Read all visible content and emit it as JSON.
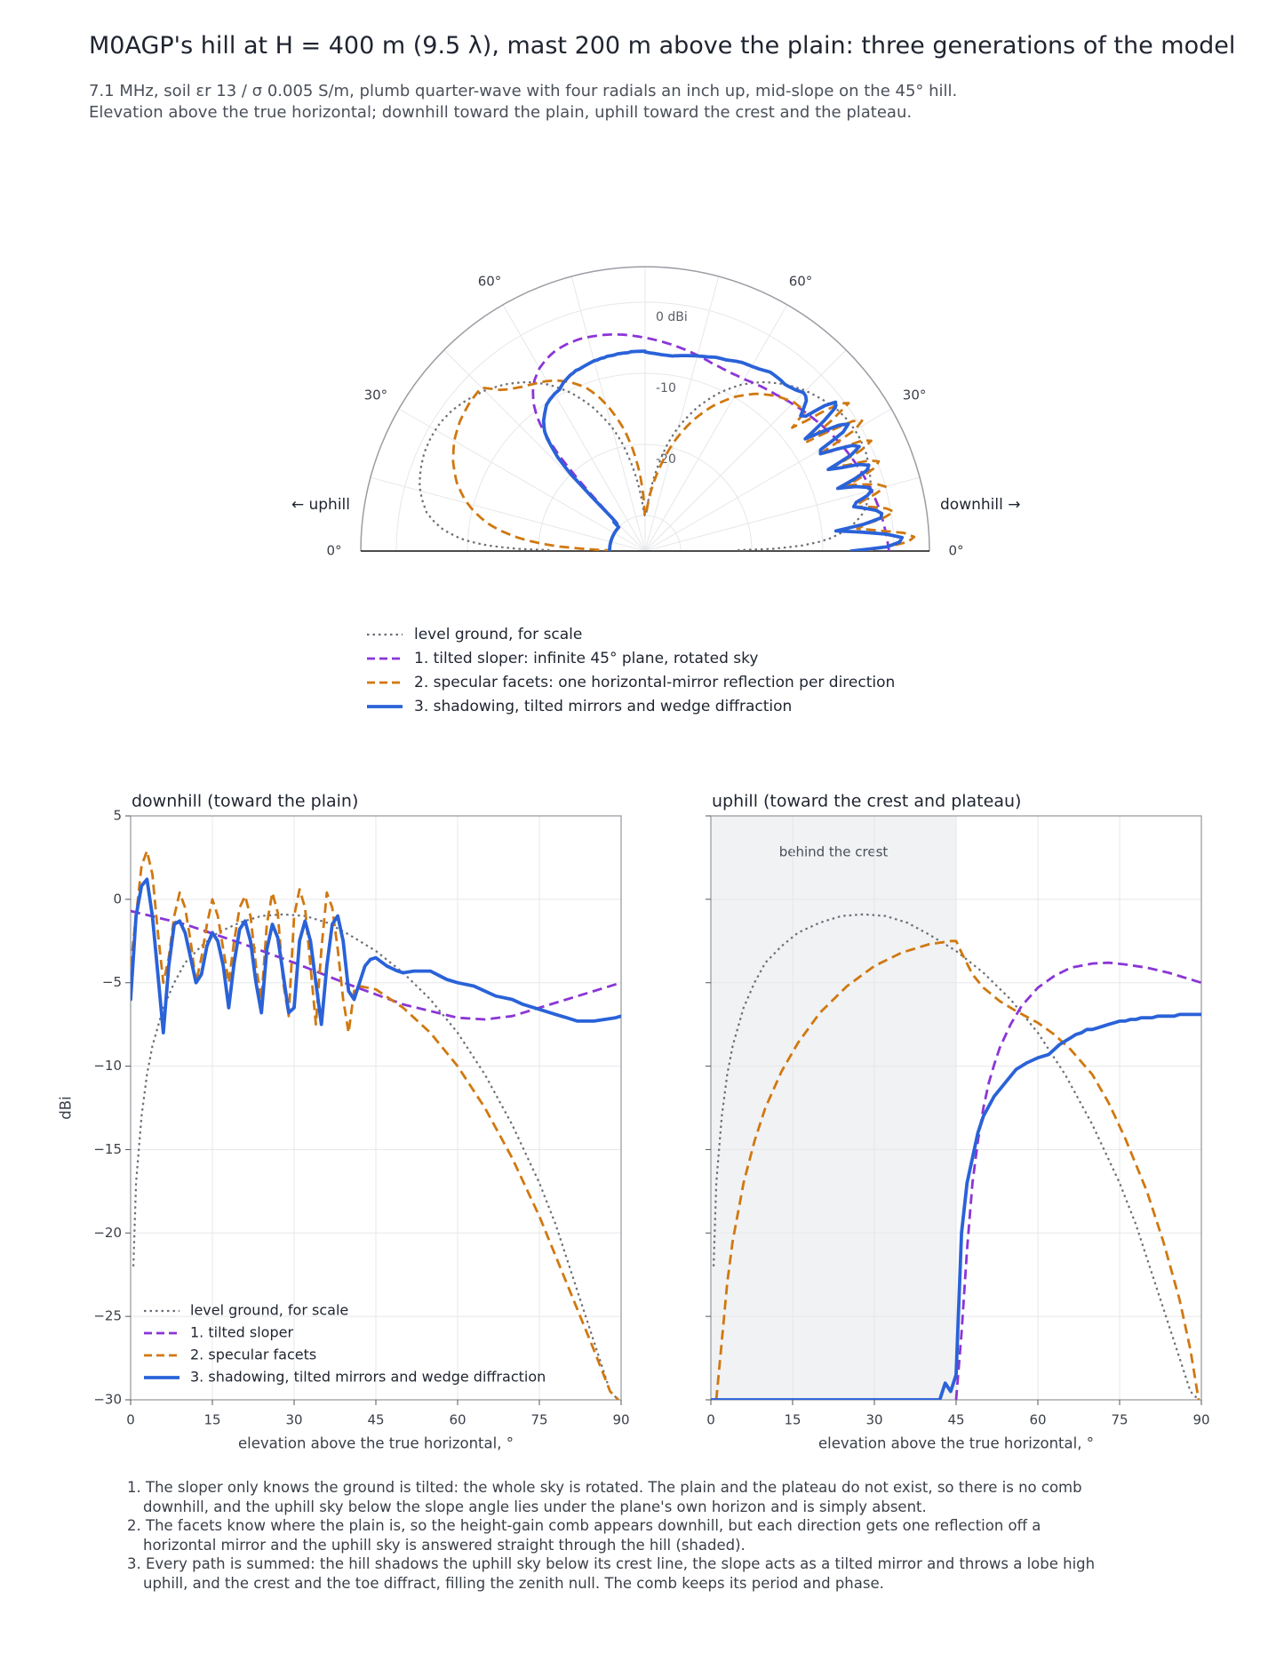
{
  "title": "M0AGP's hill at H = 400 m (9.5 λ), mast 200 m above the plain: three generations of the model",
  "subtitle": [
    "7.1 MHz, soil εr 13 / σ 0.005 S/m, plumb quarter-wave with four radials an inch up, mid-slope on the 45° hill.",
    "Elevation above the true horizontal; downhill toward the plain, uphill toward the crest and the plateau."
  ],
  "colors": {
    "level": "#6b6e75",
    "sloper": "#8b35d6",
    "facets": "#d07810",
    "shadowing": "#2a62d8",
    "grid": "#e6e7ea",
    "axis": "#9a9da3",
    "shade": "#f1f2f4"
  },
  "polar": {
    "label_left": "← uphill",
    "label_right": "downhill →",
    "angle_labels": [
      "0°",
      "30°",
      "60°"
    ],
    "radial_labels": [
      "0 dBi",
      "-10",
      "-20"
    ]
  },
  "legend_main": [
    "level ground, for scale",
    "1. tilted sloper: infinite 45° plane, rotated sky",
    "2. specular facets: one horizontal-mirror reflection per direction",
    "3. shadowing, tilted mirrors and wedge diffraction"
  ],
  "legend_small": [
    "level ground, for scale",
    "1. tilted sloper",
    "2. specular facets",
    "3. shadowing, tilted mirrors and wedge diffraction"
  ],
  "panels": {
    "downhill_title": "downhill (toward the plain)",
    "uphill_title": "uphill (toward the crest and plateau)",
    "shade_label": "behind the crest",
    "xlabel": "elevation above the true horizontal, °",
    "ylabel": "dBi"
  },
  "notes": [
    "1. The sloper only knows the ground is tilted: the whole sky is rotated. The plain and the plateau do not exist, so there is no comb downhill, and the uphill sky below the slope angle lies under the plane's own horizon and is simply absent.",
    "2. The facets know where the plain is, so the height-gain comb appears downhill, but each direction gets one reflection off a horizontal mirror and the uphill sky is answered straight through the hill (shaded).",
    "3. Every path is summed: the hill shadows the uphill sky below its crest line, the slope acts as a tilted mirror and throws a lobe high uphill, and the crest and the toe diffract, filling the zenith null. The comb keeps its period and phase."
  ],
  "chart_data": [
    {
      "type": "line",
      "name": "polar",
      "projection": "polar-half",
      "theta_unit": "elevation degrees (0 at horizon, 90 at zenith)",
      "angle_ticks": [
        0,
        30,
        60
      ],
      "r_ticks": [
        0,
        -10,
        -20
      ],
      "r_range": [
        -35,
        5
      ],
      "uses_series_from": "downhill and uphill panels"
    },
    {
      "type": "line",
      "name": "downhill",
      "title": "downhill (toward the plain)",
      "xlabel": "elevation above the true horizontal, °",
      "ylabel": "dBi",
      "xlim": [
        0,
        90
      ],
      "ylim": [
        -30,
        5
      ],
      "xticks": [
        0,
        15,
        30,
        45,
        60,
        75,
        90
      ],
      "yticks": [
        5,
        0,
        -5,
        -10,
        -15,
        -20,
        -25,
        -30
      ],
      "grid": true,
      "legend": "lower-left",
      "series": [
        {
          "name": "level ground, for scale",
          "style": "dotted",
          "x": [
            0.5,
            1,
            2,
            3,
            4,
            6,
            8,
            10,
            13,
            16,
            20,
            24,
            28,
            32,
            36,
            40,
            45,
            50,
            55,
            60,
            65,
            70,
            75,
            78,
            81,
            84,
            86,
            88,
            89.5
          ],
          "y": [
            -22,
            -17,
            -13,
            -10.5,
            -8.8,
            -6.5,
            -5,
            -3.8,
            -2.8,
            -2,
            -1.4,
            -1,
            -0.9,
            -1,
            -1.4,
            -2.1,
            -3.1,
            -4.4,
            -6,
            -8,
            -10.5,
            -13.5,
            -17,
            -19.5,
            -22.5,
            -25.5,
            -27.5,
            -29.5,
            -30
          ]
        },
        {
          "name": "1. tilted sloper",
          "style": "dashed",
          "x": [
            0,
            10,
            20,
            30,
            40,
            50,
            60,
            65,
            70,
            75,
            80,
            85,
            90
          ],
          "y": [
            -0.7,
            -1.5,
            -2.6,
            -3.8,
            -5.1,
            -6.3,
            -7.1,
            -7.2,
            -7,
            -6.5,
            -6,
            -5.5,
            -5
          ]
        },
        {
          "name": "2. specular facets",
          "style": "dashed",
          "x": [
            0,
            1,
            2,
            3,
            4,
            5,
            6,
            7,
            8,
            9,
            10,
            11,
            12,
            13,
            14,
            15,
            16,
            17,
            18,
            19,
            20,
            21,
            22,
            23,
            24,
            25,
            26,
            27,
            28,
            29,
            30,
            31,
            32,
            33,
            34,
            35,
            36,
            37,
            38,
            39,
            40,
            41,
            42,
            45,
            50,
            55,
            60,
            65,
            70,
            75,
            80,
            85,
            88,
            89.5
          ],
          "y": [
            -4,
            -1,
            2,
            2.9,
            1.5,
            -2,
            -5,
            -3.5,
            -1,
            0.4,
            -0.5,
            -2.5,
            -5,
            -3.5,
            -1.5,
            0,
            -1,
            -3,
            -5,
            -2.5,
            -0.5,
            0.2,
            -1,
            -4,
            -6,
            -1.5,
            0.4,
            -0.8,
            -5,
            -7,
            -1,
            0.6,
            -0.5,
            -4,
            -7.5,
            -3,
            0.4,
            -0.5,
            -3,
            -6,
            -8,
            -5.5,
            -5.2,
            -5.4,
            -6.5,
            -8,
            -10,
            -12.5,
            -15.5,
            -19,
            -23,
            -27,
            -29.5,
            -30
          ]
        },
        {
          "name": "3. shadowing, tilted mirrors and wedge diffraction",
          "style": "solid",
          "x": [
            0,
            1,
            2,
            3,
            4,
            5,
            6,
            7,
            8,
            9,
            10,
            11,
            12,
            13,
            14,
            15,
            16,
            17,
            18,
            19,
            20,
            21,
            22,
            23,
            24,
            25,
            26,
            27,
            28,
            29,
            30,
            31,
            32,
            33,
            34,
            35,
            36,
            37,
            38,
            39,
            40,
            41,
            42,
            43,
            44,
            45,
            47,
            49,
            50,
            52,
            55,
            58,
            60,
            63,
            65,
            67,
            70,
            72,
            75,
            78,
            80,
            82,
            85,
            87,
            89,
            90
          ],
          "y": [
            -6,
            -1,
            0.8,
            1.2,
            -1,
            -4.5,
            -8,
            -4,
            -1.5,
            -1.3,
            -2,
            -3.5,
            -5,
            -4.5,
            -2.8,
            -2,
            -2.5,
            -4,
            -6.5,
            -3.8,
            -1.8,
            -1.3,
            -2.5,
            -5,
            -6.8,
            -3,
            -1.5,
            -2.3,
            -4.5,
            -6.8,
            -6.5,
            -2.5,
            -1.3,
            -2.5,
            -5,
            -7.5,
            -4,
            -1.5,
            -1,
            -2.5,
            -5.5,
            -6,
            -5,
            -4,
            -3.6,
            -3.5,
            -4,
            -4.3,
            -4.4,
            -4.3,
            -4.3,
            -4.8,
            -5,
            -5.2,
            -5.5,
            -5.8,
            -6,
            -6.3,
            -6.6,
            -6.9,
            -7.1,
            -7.3,
            -7.3,
            -7.2,
            -7.1,
            -7
          ]
        }
      ]
    },
    {
      "type": "line",
      "name": "uphill",
      "title": "uphill (toward the crest and plateau)",
      "xlabel": "elevation above the true horizontal, °",
      "xlim": [
        0,
        90
      ],
      "ylim": [
        -30,
        5
      ],
      "xticks": [
        0,
        15,
        30,
        45,
        60,
        75,
        90
      ],
      "grid": true,
      "shaded_region": {
        "x": [
          0,
          45
        ],
        "label": "behind the crest"
      },
      "series": [
        {
          "name": "level ground, for scale",
          "style": "dotted",
          "x": [
            0.5,
            1,
            2,
            3,
            4,
            6,
            8,
            10,
            13,
            16,
            20,
            24,
            28,
            32,
            36,
            40,
            45,
            50,
            55,
            60,
            65,
            70,
            75,
            78,
            81,
            84,
            86,
            88,
            89.5
          ],
          "y": [
            -22,
            -17,
            -13,
            -10.5,
            -8.8,
            -6.5,
            -5,
            -3.8,
            -2.8,
            -2,
            -1.4,
            -1,
            -0.9,
            -1,
            -1.4,
            -2.1,
            -3.1,
            -4.4,
            -6,
            -8,
            -10.5,
            -13.5,
            -17,
            -19.5,
            -22.5,
            -25.5,
            -27.5,
            -29.5,
            -30
          ]
        },
        {
          "name": "1. tilted sloper",
          "style": "dashed",
          "x": [
            45,
            46,
            47,
            48,
            49,
            50,
            51,
            52,
            53,
            55,
            57,
            60,
            63,
            66,
            70,
            73,
            76,
            80,
            84,
            87,
            90
          ],
          "y": [
            -30,
            -26,
            -21,
            -17,
            -14.5,
            -12.5,
            -11,
            -9.9,
            -8.9,
            -7.5,
            -6.4,
            -5.3,
            -4.6,
            -4.1,
            -3.85,
            -3.8,
            -3.9,
            -4.1,
            -4.4,
            -4.7,
            -5
          ]
        },
        {
          "name": "2. specular facets",
          "style": "dashed",
          "x": [
            1,
            2,
            3,
            4,
            6,
            8,
            10,
            13,
            16,
            20,
            25,
            30,
            35,
            40,
            44,
            45,
            46,
            48,
            50,
            53,
            56,
            60,
            63,
            66,
            70,
            73,
            76,
            80,
            83,
            86,
            88,
            89.5
          ],
          "y": [
            -30,
            -26.5,
            -23,
            -20.5,
            -17,
            -14.5,
            -12.5,
            -10.3,
            -8.6,
            -6.8,
            -5.2,
            -4,
            -3.2,
            -2.7,
            -2.5,
            -2.5,
            -3.2,
            -4.5,
            -5.3,
            -6.1,
            -6.7,
            -7.4,
            -8.1,
            -9,
            -10.5,
            -12.2,
            -14.3,
            -17.5,
            -20.5,
            -24,
            -27,
            -30
          ]
        },
        {
          "name": "3. shadowing, tilted mirrors and wedge diffraction",
          "style": "solid",
          "x": [
            0,
            42,
            43,
            44,
            45,
            46,
            47,
            48,
            49,
            50,
            52,
            54,
            56,
            58,
            60,
            62,
            63,
            64,
            65,
            66,
            67,
            68,
            69,
            70,
            71,
            72,
            73,
            74,
            75,
            76,
            77,
            78,
            79,
            80,
            81,
            82,
            83,
            84,
            85,
            86,
            87,
            88,
            89,
            90
          ],
          "y": [
            -30,
            -30,
            -29,
            -29.5,
            -28.5,
            -20,
            -17,
            -15.5,
            -14,
            -13,
            -11.8,
            -11,
            -10.2,
            -9.8,
            -9.5,
            -9.3,
            -9,
            -8.7,
            -8.5,
            -8.3,
            -8.1,
            -8,
            -7.8,
            -7.8,
            -7.7,
            -7.6,
            -7.5,
            -7.4,
            -7.3,
            -7.3,
            -7.2,
            -7.2,
            -7.1,
            -7.1,
            -7.1,
            -7,
            -7,
            -7,
            -7,
            -6.9,
            -6.9,
            -6.9,
            -6.9,
            -6.9
          ]
        }
      ]
    }
  ]
}
